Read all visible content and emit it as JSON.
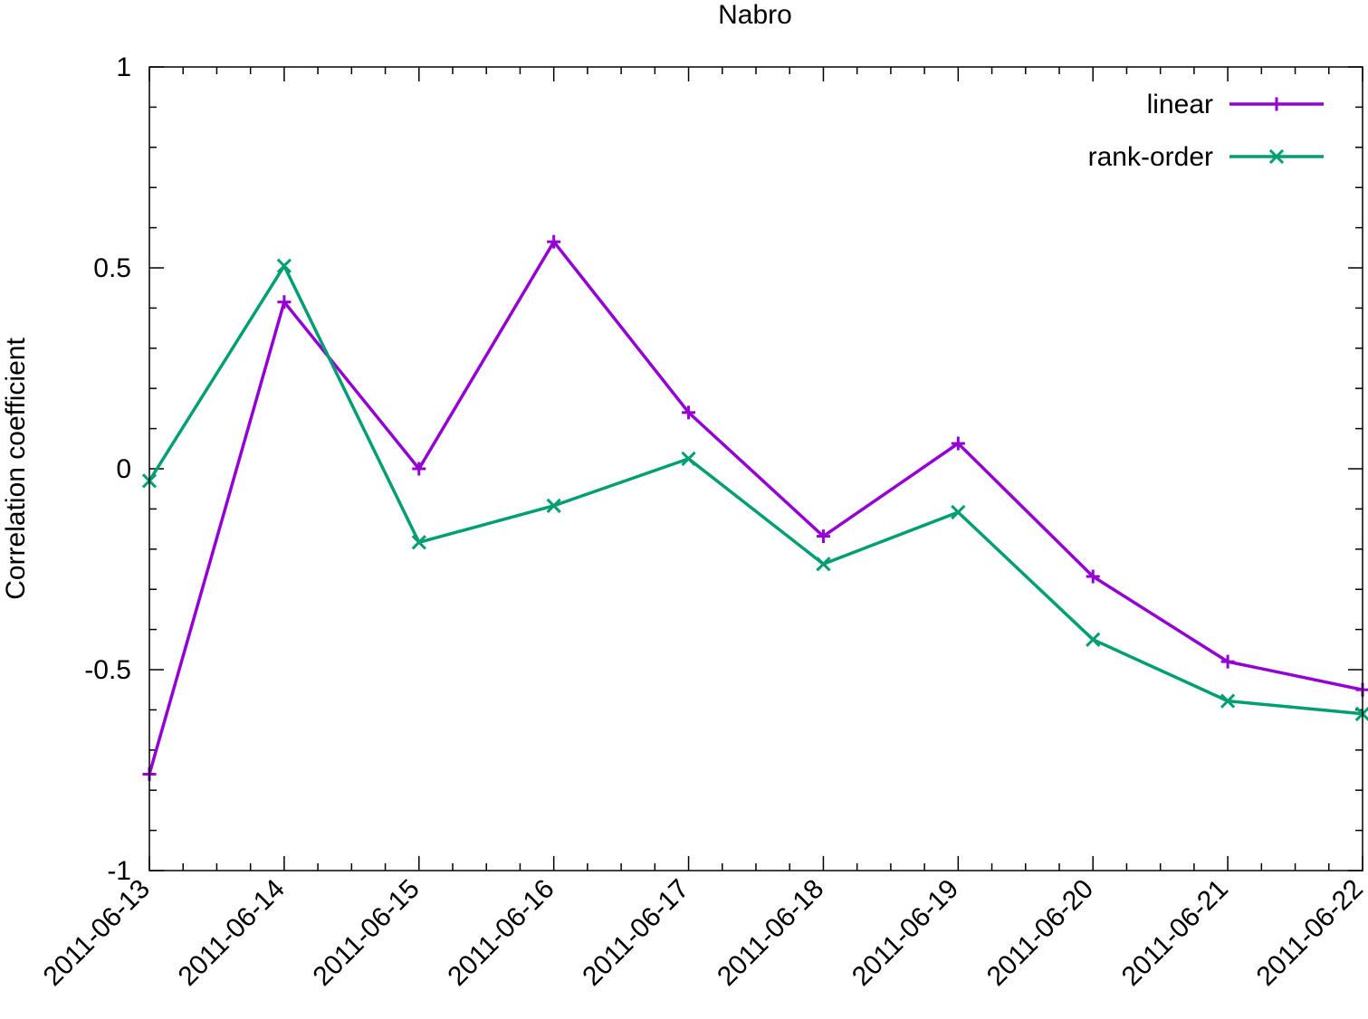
{
  "chart_data": {
    "type": "line",
    "title": "Nabro",
    "xlabel": "",
    "ylabel": "Correlation coefficient",
    "x": [
      "2011-06-13",
      "2011-06-14",
      "2011-06-15",
      "2011-06-16",
      "2011-06-17",
      "2011-06-18",
      "2011-06-19",
      "2011-06-20",
      "2011-06-21",
      "2011-06-22"
    ],
    "xlim": [
      "2011-06-13",
      "2011-06-22"
    ],
    "ylim": [
      -1,
      1
    ],
    "y_ticks": [
      -1,
      -0.5,
      0,
      0.5,
      1
    ],
    "y_tick_labels": [
      "-1",
      "-0.5",
      "0",
      "0.5",
      "1"
    ],
    "y_minor_step": 0.1,
    "x_minor_per_major": 4,
    "grid": false,
    "legend_position": "top-right",
    "series": [
      {
        "name": "linear",
        "color": "#9400d3",
        "marker": "plus",
        "values": [
          -0.76,
          0.415,
          0.0,
          0.565,
          0.14,
          -0.168,
          0.063,
          -0.268,
          -0.48,
          -0.55
        ]
      },
      {
        "name": "rank-order",
        "color": "#009e73",
        "marker": "cross",
        "values": [
          -0.03,
          0.505,
          -0.183,
          -0.092,
          0.025,
          -0.237,
          -0.108,
          -0.425,
          -0.578,
          -0.61
        ]
      }
    ]
  }
}
